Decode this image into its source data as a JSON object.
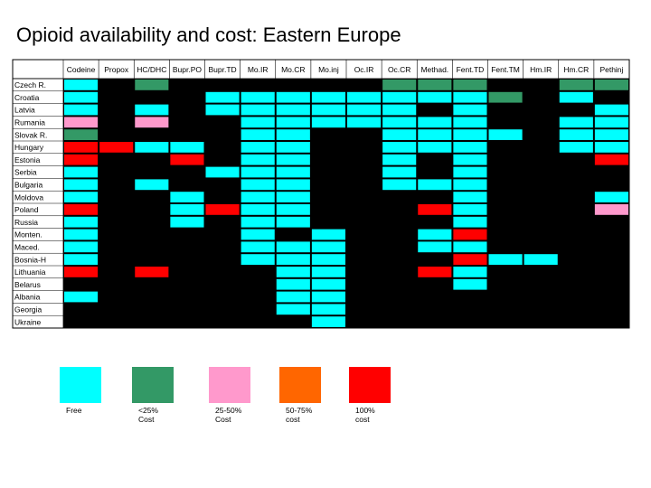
{
  "title": "Opioid availability and cost: Eastern Europe",
  "colors": {
    "free": "#00ffff",
    "lt25": "#339966",
    "p25_50": "#ff99cc",
    "p50_75": "#ff6600",
    "p100": "#ff0000",
    "unavailable": "#000000"
  },
  "chart_data": {
    "type": "heatmap",
    "title": "Opioid availability and cost: Eastern Europe",
    "columns": [
      "Codeine",
      "Propox",
      "HC/DHC",
      "Bupr.PO",
      "Bupr.TD",
      "Mo.IR",
      "Mo.CR",
      "Mo.inj",
      "Oc.IR",
      "Oc.CR",
      "Methad.",
      "Fent.TD",
      "Fent.TM",
      "Hm.IR",
      "Hm.CR",
      "Pethinj"
    ],
    "rows": [
      "Czech R.",
      "Croatia",
      "Latvia",
      "Rumania",
      "Slovak R.",
      "Hungary",
      "Estonia",
      "Serbia",
      "Bulgaria",
      "Moldova",
      "Poland",
      "Russia",
      "Monten.",
      "Maced.",
      "Bosnia-H",
      "Lithuania",
      "Belarus",
      "Albania",
      "Georgia",
      "Ukraine"
    ],
    "legend": [
      {
        "key": "F",
        "label": "Free"
      },
      {
        "key": "G",
        "label": "<25% Cost"
      },
      {
        "key": "P",
        "label": "25-50% Cost"
      },
      {
        "key": "O",
        "label": "50-75% cost"
      },
      {
        "key": "R",
        "label": "100% cost"
      }
    ],
    "cells": [
      [
        "F",
        "",
        "G",
        "",
        "",
        "",
        "",
        "",
        "",
        "G",
        "G",
        "G",
        "",
        "",
        "G",
        "G"
      ],
      [
        "F",
        "",
        "",
        "",
        "F",
        "F",
        "F",
        "F",
        "F",
        "F",
        "F",
        "F",
        "G",
        "",
        "F",
        ""
      ],
      [
        "F",
        "",
        "F",
        "",
        "F",
        "F",
        "F",
        "F",
        "F",
        "F",
        "",
        "F",
        "",
        "",
        "",
        "F"
      ],
      [
        "P",
        "",
        "P",
        "",
        "",
        "F",
        "F",
        "F",
        "F",
        "F",
        "F",
        "F",
        "",
        "",
        "F",
        "F"
      ],
      [
        "G",
        "",
        "",
        "",
        "",
        "F",
        "F",
        "",
        "",
        "F",
        "F",
        "F",
        "F",
        "",
        "F",
        "F"
      ],
      [
        "R",
        "R",
        "F",
        "F",
        "",
        "F",
        "F",
        "",
        "",
        "F",
        "F",
        "F",
        "",
        "",
        "F",
        "F"
      ],
      [
        "R",
        "",
        "",
        "R",
        "",
        "F",
        "F",
        "",
        "",
        "F",
        "",
        "F",
        "",
        "",
        "",
        "R"
      ],
      [
        "F",
        "",
        "",
        "",
        "F",
        "F",
        "F",
        "",
        "",
        "F",
        "",
        "F",
        "",
        "",
        "",
        ""
      ],
      [
        "F",
        "",
        "F",
        "",
        "",
        "F",
        "F",
        "",
        "",
        "F",
        "F",
        "F",
        "",
        "",
        "",
        ""
      ],
      [
        "F",
        "",
        "",
        "F",
        "",
        "F",
        "F",
        "",
        "",
        "",
        "",
        "F",
        "",
        "",
        "",
        "F"
      ],
      [
        "R",
        "",
        "",
        "F",
        "R",
        "F",
        "F",
        "",
        "",
        "",
        "R",
        "F",
        "",
        "",
        "",
        "P"
      ],
      [
        "F",
        "",
        "",
        "F",
        "",
        "F",
        "F",
        "",
        "",
        "",
        "",
        "F",
        "",
        "",
        "",
        ""
      ],
      [
        "F",
        "",
        "",
        "",
        "",
        "F",
        "",
        "F",
        "",
        "",
        "F",
        "R",
        "",
        "",
        "",
        ""
      ],
      [
        "F",
        "",
        "",
        "",
        "",
        "F",
        "F",
        "F",
        "",
        "",
        "F",
        "F",
        "",
        "",
        "",
        ""
      ],
      [
        "F",
        "",
        "",
        "",
        "",
        "F",
        "F",
        "F",
        "",
        "",
        "",
        "R",
        "F",
        "F",
        "",
        ""
      ],
      [
        "R",
        "",
        "R",
        "",
        "",
        "",
        "F",
        "F",
        "",
        "",
        "R",
        "F",
        "",
        "",
        "",
        ""
      ],
      [
        "",
        "",
        "",
        "",
        "",
        "",
        "F",
        "F",
        "",
        "",
        "",
        "F",
        "",
        "",
        "",
        ""
      ],
      [
        "F",
        "",
        "",
        "",
        "",
        "",
        "F",
        "F",
        "",
        "",
        "",
        "",
        "",
        "",
        "",
        ""
      ],
      [
        "",
        "",
        "",
        "",
        "",
        "",
        "F",
        "F",
        "",
        "",
        "",
        "",
        "",
        "",
        "",
        ""
      ],
      [
        "",
        "",
        "",
        "",
        "",
        "",
        "",
        "F",
        "",
        "",
        "",
        "",
        "",
        "",
        "",
        ""
      ]
    ]
  }
}
